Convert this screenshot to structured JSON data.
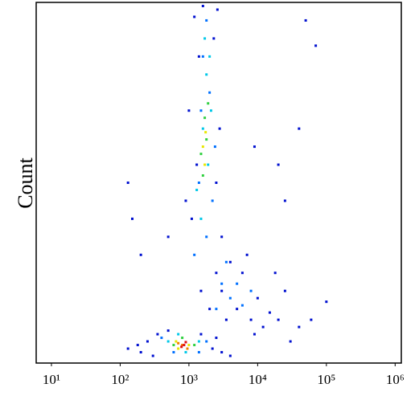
{
  "chart_data": {
    "type": "scatter",
    "y_label": "Count",
    "xscale": "log",
    "xlim": [
      6,
      1230000
    ],
    "ylim": [
      0,
      100
    ],
    "xticks": [
      {
        "value": 10,
        "label": "10¹"
      },
      {
        "value": 100,
        "label": "10²"
      },
      {
        "value": 1000,
        "label": "10³"
      },
      {
        "value": 10000,
        "label": "10⁴"
      },
      {
        "value": 100000,
        "label": "10⁵"
      },
      {
        "value": 1000000,
        "label": "10⁶"
      }
    ],
    "series": [
      {
        "color": "#0010d0",
        "x": [
          200,
          300,
          350,
          500,
          1500,
          2200,
          3000,
          180,
          250,
          2500,
          4000,
          130,
          1100,
          1300,
          2500,
          1000,
          2800,
          1400,
          2300,
          1200,
          2600,
          1600,
          900,
          3000,
          3000,
          5000,
          8000,
          12000,
          6000,
          4000,
          10000,
          15000,
          20000,
          7000,
          3500,
          9000,
          25000,
          40000,
          30000,
          2000,
          1500,
          2500,
          18000,
          130,
          150,
          200,
          500,
          20000,
          40000,
          70000,
          50000,
          9000,
          25000,
          100000,
          60000
        ],
        "values": [
          3,
          2,
          8,
          9,
          8,
          4,
          3,
          5,
          6,
          7,
          2,
          4,
          40,
          55,
          50,
          70,
          65,
          85,
          90,
          96,
          98,
          99,
          45,
          35,
          20,
          15,
          12,
          10,
          25,
          28,
          18,
          14,
          12,
          30,
          12,
          8,
          20,
          10,
          6,
          15,
          20,
          25,
          25,
          50,
          40,
          30,
          35,
          55,
          65,
          88,
          95,
          60,
          45,
          17,
          12
        ]
      },
      {
        "color": "#0070ff",
        "x": [
          1200,
          1800,
          2200,
          1400,
          2000,
          1600,
          1800,
          1500,
          2400,
          3000,
          4000,
          6000,
          2500,
          5000,
          400,
          1800,
          600,
          1400,
          8000,
          3500
        ],
        "values": [
          30,
          35,
          45,
          50,
          75,
          85,
          95,
          70,
          60,
          22,
          18,
          16,
          15,
          22,
          7,
          6,
          3,
          3,
          20,
          28
        ]
      },
      {
        "color": "#00c8e8",
        "x": [
          1500,
          1900,
          1600,
          1800,
          2100,
          1300,
          500,
          1400,
          900,
          700,
          2000,
          1700
        ],
        "values": [
          40,
          55,
          65,
          80,
          70,
          48,
          6,
          6,
          3,
          8,
          85,
          90
        ]
      },
      {
        "color": "#30d040",
        "x": [
          1500,
          1700,
          1600,
          1800,
          1900,
          600,
          1200,
          800
        ],
        "values": [
          58,
          68,
          52,
          62,
          72,
          5,
          5,
          7
        ]
      },
      {
        "color": "#e8e800",
        "x": [
          1600,
          1700,
          1750,
          1000,
          650,
          700
        ],
        "values": [
          60,
          55,
          64,
          5,
          6,
          4
        ]
      },
      {
        "color": "#f08000",
        "x": [
          800,
          950,
          700
        ],
        "values": [
          5,
          4,
          5.5
        ]
      },
      {
        "color": "#e01010",
        "x": [
          850,
          780,
          900
        ],
        "values": [
          5,
          4.5,
          5.8
        ]
      }
    ]
  }
}
